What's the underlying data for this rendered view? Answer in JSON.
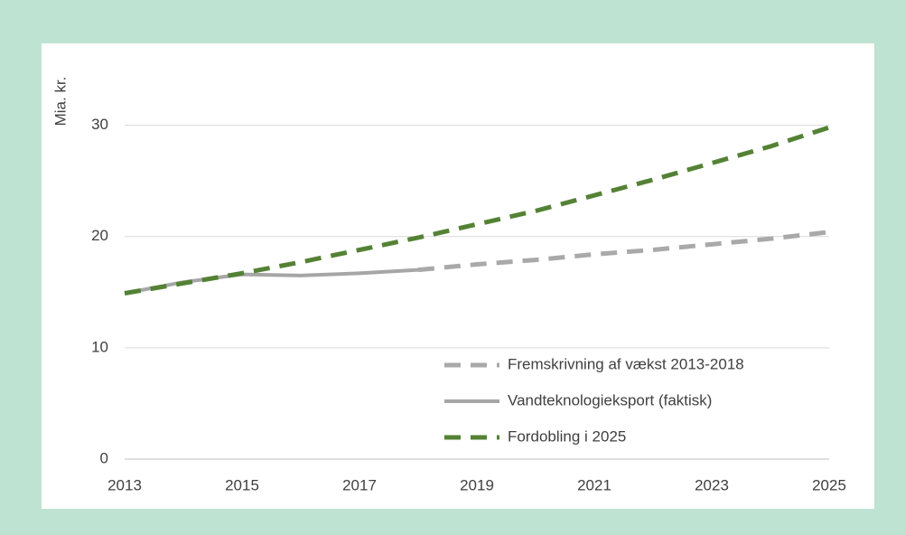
{
  "chart_data": {
    "type": "line",
    "ylabel": "Mia. kr.",
    "x": [
      2013,
      2014,
      2015,
      2016,
      2017,
      2018,
      2019,
      2020,
      2021,
      2022,
      2023,
      2024,
      2025
    ],
    "series": [
      {
        "name": "Fremskrivning af vækst 2013-2018",
        "color": "#a9a9a9",
        "dash": true,
        "values": [
          null,
          null,
          null,
          null,
          null,
          17.0,
          17.5,
          17.9,
          18.4,
          18.8,
          19.3,
          19.8,
          20.4
        ]
      },
      {
        "name": "Vandteknologieksport (faktisk)",
        "color": "#a6a6a6",
        "dash": false,
        "values": [
          14.9,
          15.9,
          16.6,
          16.5,
          16.7,
          17.0,
          null,
          null,
          null,
          null,
          null,
          null,
          null
        ]
      },
      {
        "name": "Fordobling i 2025",
        "color": "#548235",
        "dash": true,
        "values": [
          14.9,
          15.8,
          16.7,
          17.7,
          18.8,
          19.9,
          21.1,
          22.3,
          23.7,
          25.1,
          26.6,
          28.1,
          29.8
        ]
      }
    ],
    "xlim": [
      2013,
      2025
    ],
    "xticks": [
      2013,
      2015,
      2017,
      2019,
      2021,
      2023,
      2025
    ],
    "ylim": [
      0,
      35
    ],
    "yticks": [
      0,
      10,
      20,
      30
    ],
    "grid": true,
    "legend": "lower right"
  }
}
